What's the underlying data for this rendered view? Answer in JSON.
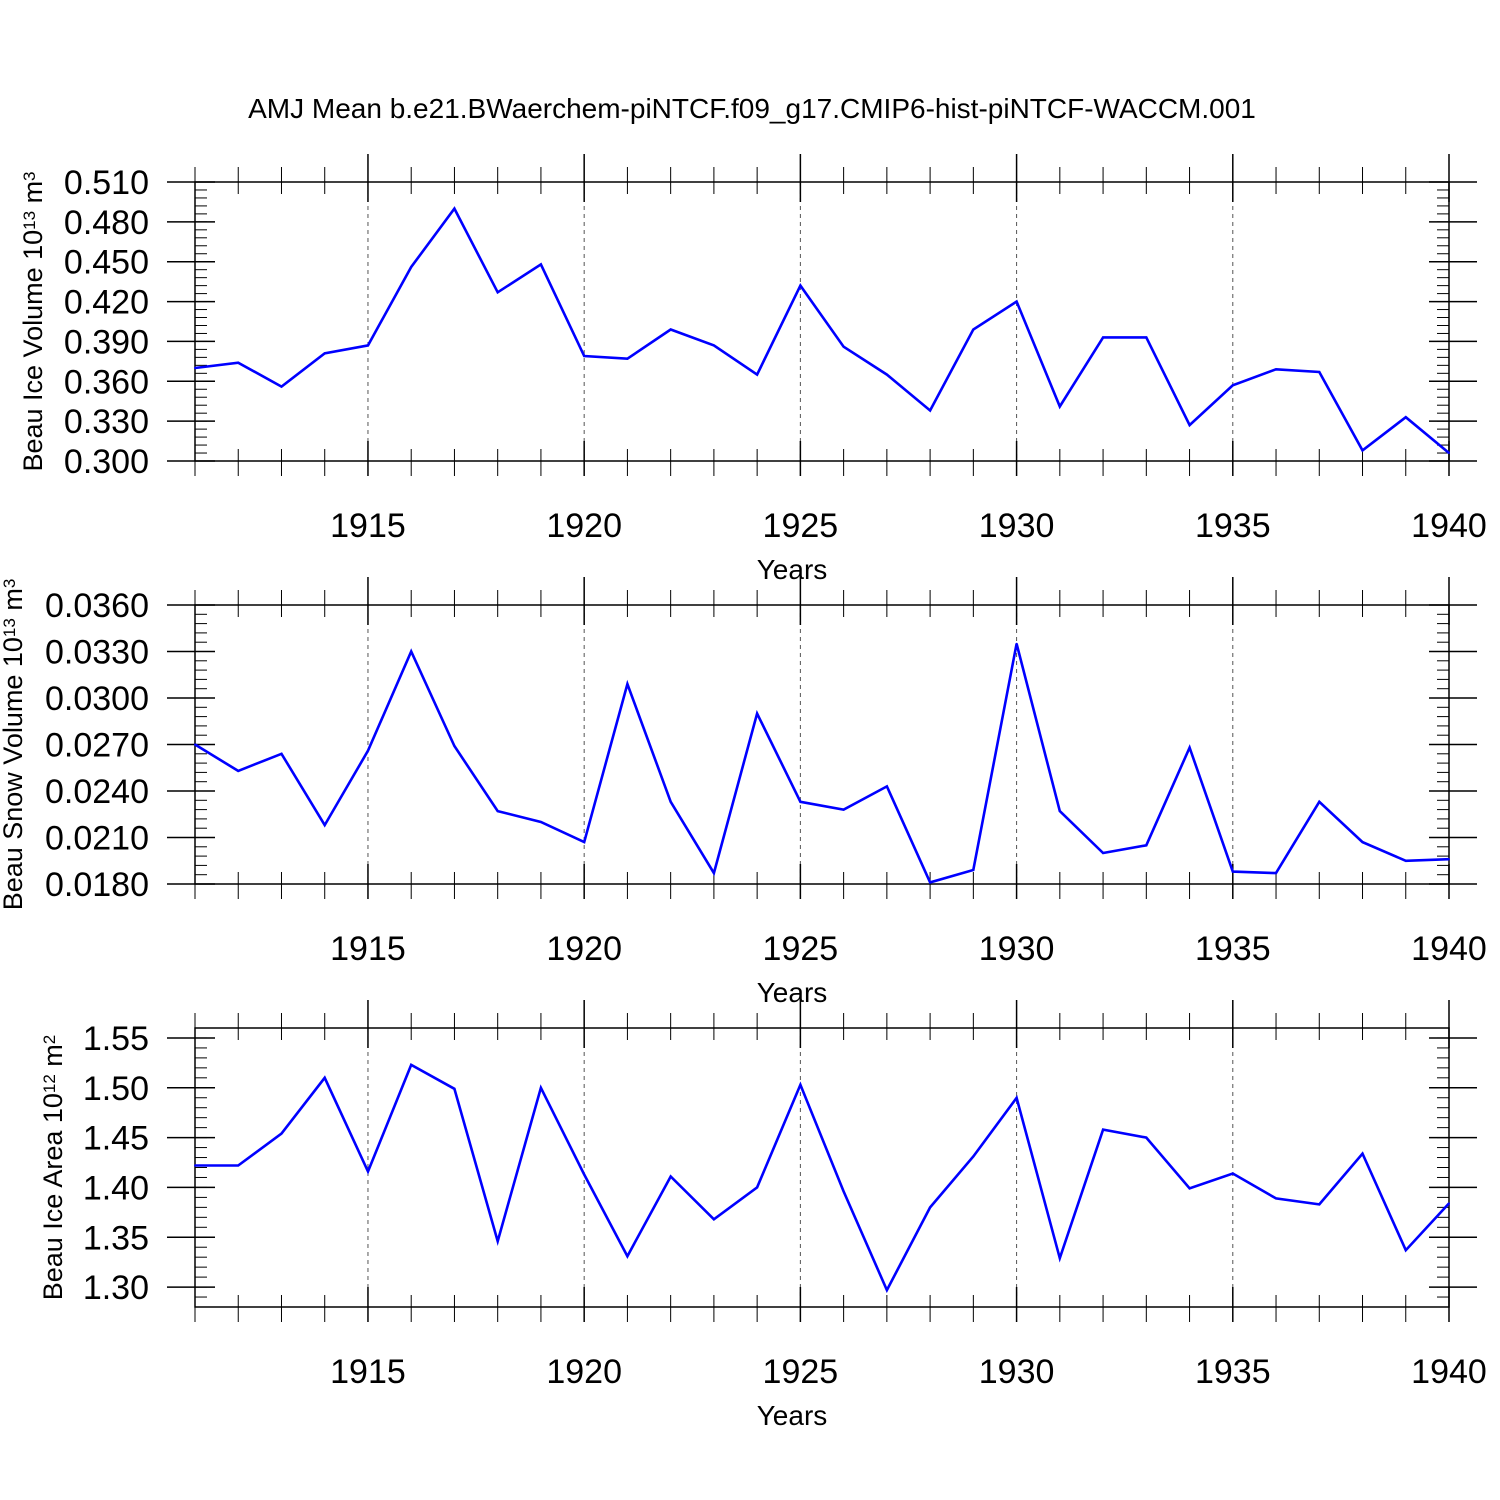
{
  "title": "AMJ Mean b.e21.BWaerchem-piNTCF.f09_g17.CMIP6-hist-piNTCF-WACCM.001",
  "colors": {
    "line": "#0000ff",
    "axis": "#000000",
    "grid": "#555555",
    "background": "#ffffff"
  },
  "chart_data": [
    {
      "type": "line",
      "ylabel_main": "Beau Ice Volume 10",
      "ylabel_exp": "13",
      "ylabel_unit": "m",
      "ylabel_unit_exp": "3",
      "xlabel": "Years",
      "xlim": [
        1911,
        1940
      ],
      "ylim": [
        0.3,
        0.51
      ],
      "yticks": [
        0.3,
        0.33,
        0.36,
        0.39,
        0.42,
        0.45,
        0.48,
        0.51
      ],
      "ytick_labels": [
        "0.300",
        "0.330",
        "0.360",
        "0.390",
        "0.420",
        "0.450",
        "0.480",
        "0.510"
      ],
      "ytick_minor_step": 0.006,
      "xticks": [
        1915,
        1920,
        1925,
        1930,
        1935,
        1940
      ],
      "xtick_labels": [
        "1915",
        "1920",
        "1925",
        "1930",
        "1935",
        "1940"
      ],
      "grid": "vertical-dashed",
      "series": [
        {
          "name": "Beau Ice Volume",
          "x": [
            1911,
            1912,
            1913,
            1914,
            1915,
            1916,
            1917,
            1918,
            1919,
            1920,
            1921,
            1922,
            1923,
            1924,
            1925,
            1926,
            1927,
            1928,
            1929,
            1930,
            1931,
            1932,
            1933,
            1934,
            1935,
            1936,
            1937,
            1938,
            1939,
            1940
          ],
          "values": [
            0.37,
            0.374,
            0.356,
            0.381,
            0.387,
            0.446,
            0.49,
            0.427,
            0.448,
            0.379,
            0.377,
            0.399,
            0.387,
            0.365,
            0.432,
            0.386,
            0.365,
            0.338,
            0.399,
            0.42,
            0.341,
            0.393,
            0.393,
            0.327,
            0.357,
            0.369,
            0.367,
            0.308,
            0.333,
            0.306
          ]
        }
      ]
    },
    {
      "type": "line",
      "ylabel_main": "Beau Snow Volume 10",
      "ylabel_exp": "13",
      "ylabel_unit": "m",
      "ylabel_unit_exp": "3",
      "xlabel": "Years",
      "xlim": [
        1911,
        1940
      ],
      "ylim": [
        0.018,
        0.036
      ],
      "yticks": [
        0.018,
        0.021,
        0.024,
        0.027,
        0.03,
        0.033,
        0.036
      ],
      "ytick_labels": [
        "0.0180",
        "0.0210",
        "0.0240",
        "0.0270",
        "0.0300",
        "0.0330",
        "0.0360"
      ],
      "ytick_minor_step": 0.0006,
      "xticks": [
        1915,
        1920,
        1925,
        1930,
        1935,
        1940
      ],
      "xtick_labels": [
        "1915",
        "1920",
        "1925",
        "1930",
        "1935",
        "1940"
      ],
      "grid": "vertical-dashed",
      "series": [
        {
          "name": "Beau Snow Volume",
          "x": [
            1911,
            1912,
            1913,
            1914,
            1915,
            1916,
            1917,
            1918,
            1919,
            1920,
            1921,
            1922,
            1923,
            1924,
            1925,
            1926,
            1927,
            1928,
            1929,
            1930,
            1931,
            1932,
            1933,
            1934,
            1935,
            1936,
            1937,
            1938,
            1939,
            1940
          ],
          "values": [
            0.027,
            0.0253,
            0.0264,
            0.0218,
            0.0266,
            0.033,
            0.0269,
            0.0227,
            0.022,
            0.0207,
            0.0309,
            0.0233,
            0.0187,
            0.029,
            0.0233,
            0.0228,
            0.0243,
            0.0181,
            0.0189,
            0.0335,
            0.0227,
            0.02,
            0.0205,
            0.0268,
            0.0188,
            0.0187,
            0.0233,
            0.0207,
            0.0195,
            0.0196
          ]
        }
      ]
    },
    {
      "type": "line",
      "ylabel_main": "Beau Ice Area 10",
      "ylabel_exp": "12",
      "ylabel_unit": "m",
      "ylabel_unit_exp": "2",
      "xlabel": "Years",
      "xlim": [
        1911,
        1940
      ],
      "ylim": [
        1.28,
        1.56
      ],
      "yticks": [
        1.3,
        1.35,
        1.4,
        1.45,
        1.5,
        1.55
      ],
      "ytick_labels": [
        "1.30",
        "1.35",
        "1.40",
        "1.45",
        "1.50",
        "1.55"
      ],
      "ytick_minor_step": 0.01,
      "xticks": [
        1915,
        1920,
        1925,
        1930,
        1935,
        1940
      ],
      "xtick_labels": [
        "1915",
        "1920",
        "1925",
        "1930",
        "1935",
        "1940"
      ],
      "grid": "vertical-dashed",
      "series": [
        {
          "name": "Beau Ice Area",
          "x": [
            1911,
            1912,
            1913,
            1914,
            1915,
            1916,
            1917,
            1918,
            1919,
            1920,
            1921,
            1922,
            1923,
            1924,
            1925,
            1926,
            1927,
            1928,
            1929,
            1930,
            1931,
            1932,
            1933,
            1934,
            1935,
            1936,
            1937,
            1938,
            1939,
            1940
          ],
          "values": [
            1.422,
            1.422,
            1.454,
            1.51,
            1.416,
            1.523,
            1.499,
            1.346,
            1.5,
            1.413,
            1.331,
            1.411,
            1.368,
            1.4,
            1.503,
            1.396,
            1.297,
            1.38,
            1.431,
            1.49,
            1.329,
            1.458,
            1.45,
            1.399,
            1.414,
            1.389,
            1.383,
            1.434,
            1.337,
            1.384
          ]
        }
      ]
    }
  ]
}
